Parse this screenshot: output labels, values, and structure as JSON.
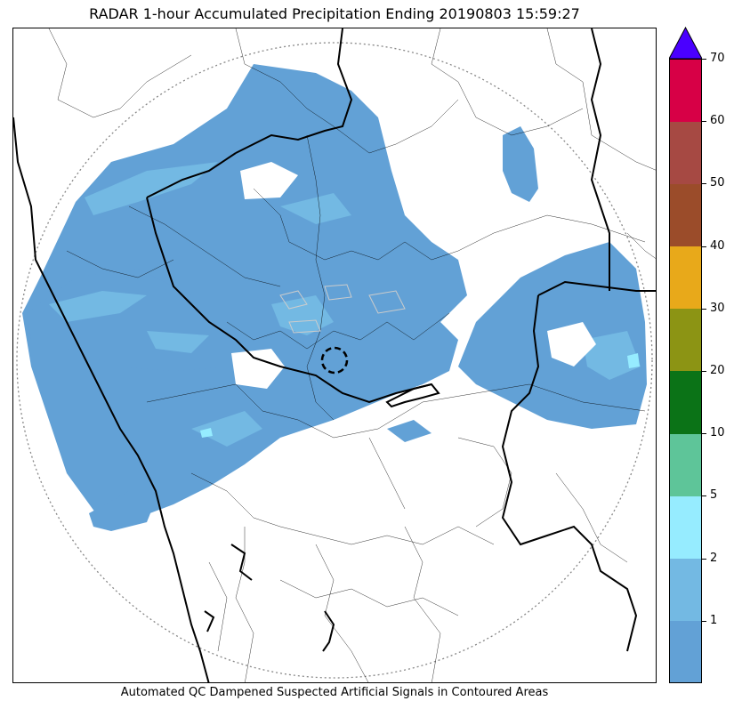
{
  "title": "RADAR 1-hour Accumulated Precipitation Ending 20190803 15:59:27",
  "footer": "Automated QC Dampened Suspected Artificial Signals in Contoured Areas",
  "colorbar": {
    "levels": [
      {
        "label": "",
        "color": "#62a1d6"
      },
      {
        "label": "1",
        "color": "#73b9e3"
      },
      {
        "label": "2",
        "color": "#96ecff"
      },
      {
        "label": "5",
        "color": "#5ec599"
      },
      {
        "label": "10",
        "color": "#0b7317"
      },
      {
        "label": "20",
        "color": "#8c9414"
      },
      {
        "label": "30",
        "color": "#e8a91a"
      },
      {
        "label": "40",
        "color": "#9b4c2a"
      },
      {
        "label": "50",
        "color": "#a64943"
      },
      {
        "label": "60",
        "color": "#d70046"
      },
      {
        "label": "70",
        "color": "#4a00ff"
      }
    ],
    "extend": "max"
  },
  "colors": {
    "rain_light": "#62a1d6",
    "rain_1": "#73b9e3",
    "rain_2": "#96ecff",
    "border_state": "#000000",
    "border_district": "#000000",
    "range_ring": "#888888"
  }
}
